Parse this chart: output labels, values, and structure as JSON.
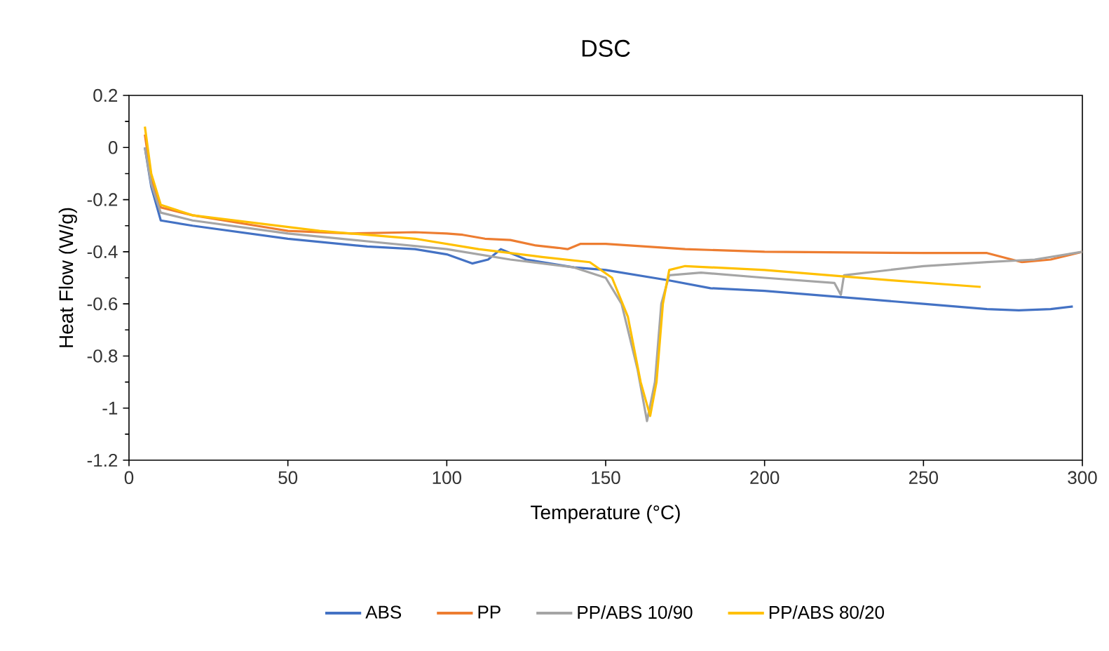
{
  "chart_data": {
    "type": "line",
    "title": "DSC",
    "xlabel": "Temperature (°C)",
    "ylabel": "Heat Flow (W/g)",
    "xlim": [
      0,
      300
    ],
    "ylim": [
      -1.2,
      0.2
    ],
    "xticks": [
      0,
      50,
      100,
      150,
      200,
      250,
      300
    ],
    "yticks": [
      -1.2,
      -1,
      -0.8,
      -0.6,
      -0.4,
      -0.2,
      0,
      0.2
    ],
    "legend": "bottom",
    "grid": false,
    "series": [
      {
        "name": "ABS",
        "color": "#4472c4",
        "x": [
          5,
          7,
          10,
          20,
          50,
          75,
          90,
          100,
          108,
          113,
          117,
          125,
          140,
          150,
          160,
          170,
          183,
          200,
          250,
          270,
          280,
          290,
          297
        ],
        "values": [
          0,
          -0.15,
          -0.28,
          -0.3,
          -0.35,
          -0.38,
          -0.39,
          -0.41,
          -0.445,
          -0.43,
          -0.39,
          -0.43,
          -0.46,
          -0.47,
          -0.49,
          -0.51,
          -0.54,
          -0.55,
          -0.6,
          -0.62,
          -0.625,
          -0.62,
          -0.61
        ]
      },
      {
        "name": "PP",
        "color": "#ed7d31",
        "x": [
          5,
          7,
          10,
          20,
          40,
          50,
          70,
          90,
          100,
          105,
          112,
          120,
          128,
          135,
          138,
          142,
          150,
          175,
          200,
          250,
          270,
          281,
          290,
          300
        ],
        "values": [
          0.05,
          -0.12,
          -0.23,
          -0.26,
          -0.3,
          -0.32,
          -0.33,
          -0.325,
          -0.33,
          -0.335,
          -0.35,
          -0.355,
          -0.376,
          -0.385,
          -0.39,
          -0.37,
          -0.37,
          -0.39,
          -0.4,
          -0.405,
          -0.405,
          -0.44,
          -0.43,
          -0.4
        ]
      },
      {
        "name": "PP/ABS 10/90",
        "color": "#a5a5a5",
        "x": [
          5,
          7,
          10,
          20,
          50,
          75,
          100,
          120,
          140,
          150,
          155,
          160,
          163,
          165.5,
          167.5,
          170,
          180,
          200,
          222,
          224,
          225,
          250,
          270,
          285,
          300
        ],
        "values": [
          0,
          -0.14,
          -0.25,
          -0.28,
          -0.33,
          -0.36,
          -0.39,
          -0.43,
          -0.46,
          -0.5,
          -0.6,
          -0.85,
          -1.05,
          -0.9,
          -0.6,
          -0.49,
          -0.48,
          -0.5,
          -0.52,
          -0.565,
          -0.49,
          -0.455,
          -0.44,
          -0.43,
          -0.4
        ]
      },
      {
        "name": "PP/ABS 80/20",
        "color": "#ffc000",
        "x": [
          5,
          7,
          10,
          20,
          40,
          60,
          90,
          110,
          130,
          145,
          152,
          157,
          161,
          164,
          166,
          168,
          170,
          175,
          200,
          240,
          268
        ],
        "values": [
          0.08,
          -0.1,
          -0.22,
          -0.26,
          -0.29,
          -0.32,
          -0.35,
          -0.39,
          -0.42,
          -0.44,
          -0.5,
          -0.65,
          -0.9,
          -1.03,
          -0.9,
          -0.6,
          -0.47,
          -0.455,
          -0.47,
          -0.51,
          -0.535
        ]
      }
    ]
  }
}
